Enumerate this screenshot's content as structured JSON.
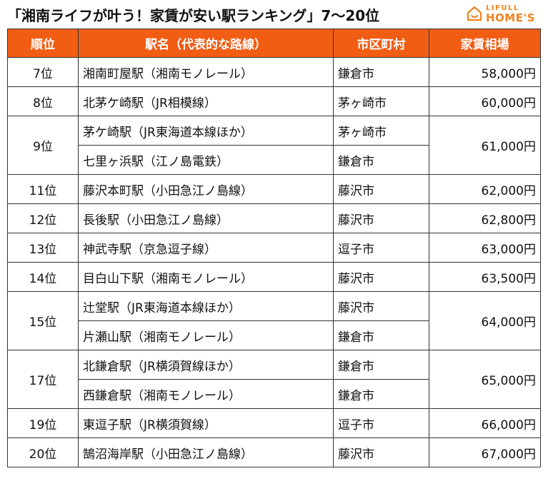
{
  "title": "「湘南ライフが叶う！家賃が安い駅ランキング」7〜20位",
  "logo": {
    "top_text": "LIFULL",
    "main_text": "HOME'S",
    "color": "#f0831e"
  },
  "colors": {
    "header_bg": "#f25d14",
    "header_text": "#ffffff",
    "border": "#333333"
  },
  "table": {
    "headers": [
      "順位",
      "駅名（代表的な路線）",
      "市区町村",
      "家賃相場"
    ],
    "rows": [
      {
        "rank": "7位",
        "rent": "58,000円",
        "stations": [
          {
            "name": "湘南町屋駅（湘南モノレール）",
            "city": "鎌倉市"
          }
        ]
      },
      {
        "rank": "8位",
        "rent": "60,000円",
        "stations": [
          {
            "name": "北茅ケ崎駅（JR相模線）",
            "city": "茅ヶ崎市"
          }
        ]
      },
      {
        "rank": "9位",
        "rent": "61,000円",
        "stations": [
          {
            "name": "茅ケ崎駅（JR東海道本線ほか）",
            "city": "茅ヶ崎市"
          },
          {
            "name": "七里ヶ浜駅（江ノ島電鉄）",
            "city": "鎌倉市"
          }
        ]
      },
      {
        "rank": "11位",
        "rent": "62,000円",
        "stations": [
          {
            "name": "藤沢本町駅（小田急江ノ島線）",
            "city": "藤沢市"
          }
        ]
      },
      {
        "rank": "12位",
        "rent": "62,800円",
        "stations": [
          {
            "name": "長後駅（小田急江ノ島線）",
            "city": "藤沢市"
          }
        ]
      },
      {
        "rank": "13位",
        "rent": "63,000円",
        "stations": [
          {
            "name": "神武寺駅（京急逗子線）",
            "city": "逗子市"
          }
        ]
      },
      {
        "rank": "14位",
        "rent": "63,500円",
        "stations": [
          {
            "name": "目白山下駅（湘南モノレール）",
            "city": "藤沢市"
          }
        ]
      },
      {
        "rank": "15位",
        "rent": "64,000円",
        "stations": [
          {
            "name": "辻堂駅（JR東海道本線ほか）",
            "city": "藤沢市"
          },
          {
            "name": "片瀬山駅（湘南モノレール）",
            "city": "鎌倉市"
          }
        ]
      },
      {
        "rank": "17位",
        "rent": "65,000円",
        "stations": [
          {
            "name": "北鎌倉駅（JR横須賀線ほか）",
            "city": "鎌倉市"
          },
          {
            "name": "西鎌倉駅（湘南モノレール）",
            "city": "鎌倉市"
          }
        ]
      },
      {
        "rank": "19位",
        "rent": "66,000円",
        "stations": [
          {
            "name": "東逗子駅（JR横須賀線）",
            "city": "逗子市"
          }
        ]
      },
      {
        "rank": "20位",
        "rent": "67,000円",
        "stations": [
          {
            "name": "鵠沼海岸駅（小田急江ノ島線）",
            "city": "藤沢市"
          }
        ]
      }
    ]
  }
}
